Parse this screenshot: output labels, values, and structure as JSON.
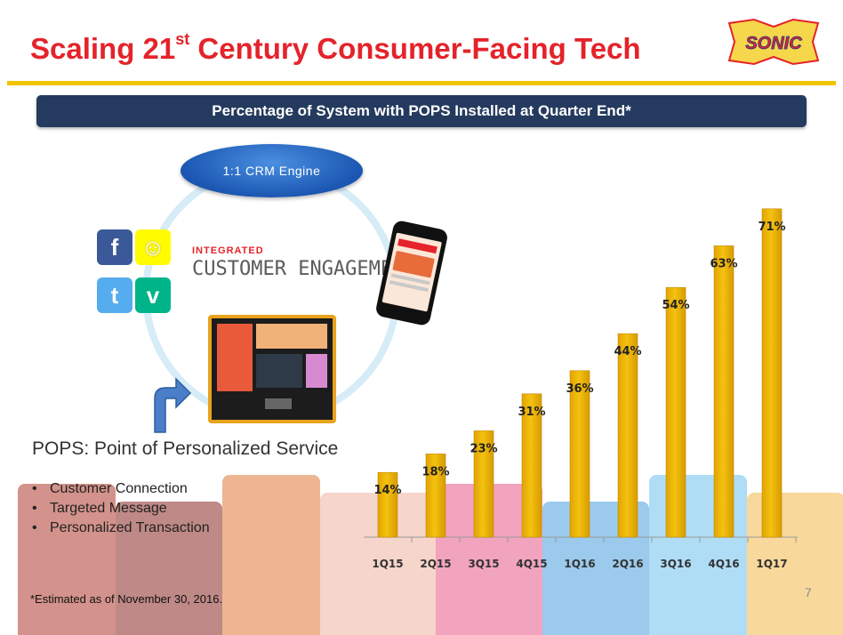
{
  "header": {
    "title_pre": "Scaling 21",
    "title_sup": "st",
    "title_post": " Century Consumer-Facing Tech",
    "logo_text": "SONIC"
  },
  "banner": {
    "text": "Percentage of System with POPS Installed at Quarter End*"
  },
  "diagram": {
    "crm_label": "1:1 CRM Engine",
    "integrated_label": "INTEGRATED",
    "engagement_label": "CUSTOMER ENGAGEMENT",
    "social_icons": [
      "facebook-icon",
      "snapchat-icon",
      "twitter-icon",
      "vine-icon"
    ]
  },
  "pops": {
    "title": "POPS: Point of Personalized Service",
    "bullets": [
      "Customer Connection",
      "Targeted Message",
      "Personalized Transaction"
    ]
  },
  "footnote": "*Estimated as of November 30, 2016.",
  "page_number": "7",
  "colors": {
    "title_red": "#e4232a",
    "banner_navy": "#243a5e",
    "bar_yellow": "#f5c211",
    "rule_yellow": "#f2c400"
  },
  "chart_data": {
    "type": "bar",
    "title": "Percentage of System with POPS Installed at Quarter End*",
    "categories": [
      "1Q15",
      "2Q15",
      "3Q15",
      "4Q15",
      "1Q16",
      "2Q16",
      "3Q16",
      "4Q16",
      "1Q17"
    ],
    "values": [
      14,
      18,
      23,
      31,
      36,
      44,
      54,
      63,
      71
    ],
    "value_labels": [
      "14%",
      "18%",
      "23%",
      "31%",
      "36%",
      "44%",
      "54%",
      "63%",
      "71%"
    ],
    "ylim": [
      0,
      75
    ],
    "grid": false,
    "legend": "none"
  }
}
